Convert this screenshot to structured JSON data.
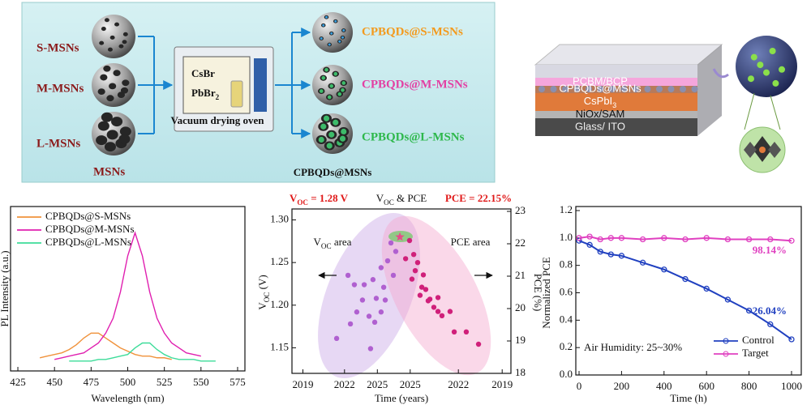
{
  "schematic": {
    "inputs": [
      "S-MSNs",
      "M-MSNs",
      "L-MSNs"
    ],
    "inputs_caption": "MSNs",
    "reagents": [
      "CsBr",
      {
        "text": "PbBr",
        "sub": "2"
      }
    ],
    "oven_label": "Vacuum drying oven",
    "outputs": [
      "CPBQDs@S-MSNs",
      "CPBQDs@M-MSNs",
      "CPBQDs@L-MSNs"
    ],
    "outputs_caption": "CPBQDs@MSNs"
  },
  "device": {
    "layers": [
      "PCBM/BCP",
      "CPBQDs@MSNs",
      {
        "text": "CsPbI",
        "sub": "3"
      },
      "NiOx/SAM",
      "Glass/ ITO"
    ]
  },
  "chart_data": [
    {
      "type": "line",
      "xlabel": "Wavelength (nm)",
      "ylabel": "PL Intensity (a.u.)",
      "xlim": [
        420,
        580
      ],
      "xticks": [
        425,
        450,
        475,
        500,
        525,
        550,
        575
      ],
      "ylim": [
        0,
        1
      ],
      "legend": "top-left",
      "x": [
        440,
        445,
        450,
        455,
        460,
        465,
        470,
        475,
        480,
        485,
        490,
        495,
        500,
        505,
        510,
        515,
        520,
        525,
        530,
        535,
        540,
        545,
        550,
        555,
        560
      ],
      "series": [
        {
          "name": "CPBQDs@S-MSNs",
          "color": "#f0923b",
          "values": [
            0.08,
            0.09,
            0.1,
            0.11,
            0.13,
            0.16,
            0.2,
            0.23,
            0.23,
            0.2,
            0.17,
            0.14,
            0.12,
            0.1,
            0.09,
            0.09,
            0.08,
            0.08,
            0.07,
            null,
            null,
            null,
            null,
            null,
            null
          ]
        },
        {
          "name": "CPBQDs@M-MSNs",
          "color": "#e020b0",
          "values": [
            null,
            null,
            0.07,
            0.08,
            0.09,
            0.1,
            0.11,
            0.14,
            0.17,
            0.23,
            0.32,
            0.48,
            0.7,
            0.84,
            0.7,
            0.48,
            0.32,
            0.23,
            0.17,
            0.14,
            0.11,
            0.1,
            0.09,
            null,
            null
          ]
        },
        {
          "name": "CPBQDs@L-MSNs",
          "color": "#3ddc9a",
          "values": [
            null,
            null,
            null,
            null,
            0.06,
            0.06,
            0.06,
            0.06,
            0.07,
            0.07,
            0.08,
            0.09,
            0.1,
            0.14,
            0.17,
            0.17,
            0.13,
            0.1,
            0.08,
            0.07,
            0.07,
            0.07,
            0.06,
            0.06,
            0.06
          ]
        }
      ]
    },
    {
      "type": "scatter",
      "title": {
        "text": "V",
        "sub": "OC",
        "after": " & PCE"
      },
      "xlabel": "Time (years)",
      "ylabel": {
        "text": "V",
        "sub": "OC",
        "after": " (V)"
      },
      "y2label": "PCE (%)",
      "xlim": [
        0,
        100
      ],
      "xticks": [
        {
          "value": 5,
          "label": "2019"
        },
        {
          "value": 24,
          "label": "2022"
        },
        {
          "value": 39,
          "label": "2025"
        },
        {
          "value": 54,
          "label": "2025"
        },
        {
          "value": 76,
          "label": "2022"
        },
        {
          "value": 96,
          "label": "2019"
        }
      ],
      "ylim": [
        1.12,
        1.31
      ],
      "yticks": [
        1.15,
        {
          "value": 1.2,
          "label": "1.20"
        },
        1.25,
        {
          "value": 1.3,
          "label": "1.30"
        }
      ],
      "y2lim": [
        18,
        23
      ],
      "y2ticks": [
        18,
        19,
        20,
        21,
        22,
        23
      ],
      "annotations": [
        {
          "text": "V",
          "sub": "OC",
          "after": " = 1.28 V"
        },
        "PCE = 22.15%",
        {
          "text": "V",
          "sub": "OC",
          "after": " area"
        },
        "PCE area"
      ],
      "best": {
        "x": 49.3,
        "voc": 1.28,
        "pce": 22.15
      },
      "series": [
        {
          "color": "#b060d0",
          "x": [
            20.4,
            26.7,
            29.6,
            32.2,
            35.2,
            37,
            38.5,
            40.7,
            41.9,
            43.7,
            45.2,
            46.3,
            40.7,
            33,
            28.5,
            37.8,
            47.4,
            25.6,
            35.9,
            42.6
          ],
          "values": [
            1.161,
            1.178,
            1.192,
            1.206,
            1.187,
            1.23,
            1.208,
            1.244,
            1.221,
            1.252,
            1.273,
            1.235,
            1.192,
            1.224,
            1.224,
            1.18,
            1.263,
            1.235,
            1.149,
            1.206
          ]
        },
        {
          "color": "#d0207a",
          "axis": "y2",
          "x": [
            53.7,
            55.6,
            57.4,
            54.8,
            59.3,
            61.1,
            63,
            62.2,
            64.8,
            66.7,
            68.5,
            56.3,
            58.5,
            51.9,
            74.1,
            79.6,
            85.2,
            60,
            66.7,
            72.2
          ],
          "values": [
            22.1,
            21.67,
            21.42,
            20.91,
            20.66,
            20.59,
            20.29,
            20.24,
            20.04,
            19.91,
            19.78,
            21.17,
            20.41,
            21.54,
            19.28,
            19.28,
            18.9,
            21.04,
            20.34,
            19.91
          ]
        }
      ]
    },
    {
      "type": "line",
      "xlabel": "Time (h)",
      "ylabel": "Normalized PCE",
      "xlim": [
        0,
        1000
      ],
      "xticks": [
        0,
        200,
        400,
        600,
        800,
        1000
      ],
      "ylim": [
        0,
        1.2
      ],
      "yticks": [
        {
          "value": 0,
          "label": "0.0"
        },
        0.2,
        0.4,
        0.6,
        0.8,
        {
          "value": 1,
          "label": "1.0"
        },
        1.2
      ],
      "legend": "bottom-right",
      "annotations": [
        "98.14%",
        "26.04%",
        "Air Humidity: 25~30%"
      ],
      "x": [
        0,
        50,
        100,
        150,
        200,
        300,
        400,
        500,
        600,
        700,
        800,
        900,
        1000
      ],
      "series": [
        {
          "name": "Control",
          "color": "#2040c0",
          "values": [
            0.98,
            0.95,
            0.9,
            0.88,
            0.87,
            0.82,
            0.77,
            0.7,
            0.63,
            0.55,
            0.47,
            0.37,
            0.26
          ]
        },
        {
          "name": "Target",
          "color": "#e040c0",
          "values": [
            1.0,
            1.01,
            0.99,
            1.0,
            1.0,
            0.99,
            1.0,
            0.99,
            1.0,
            0.99,
            0.99,
            0.99,
            0.98
          ]
        }
      ]
    }
  ]
}
